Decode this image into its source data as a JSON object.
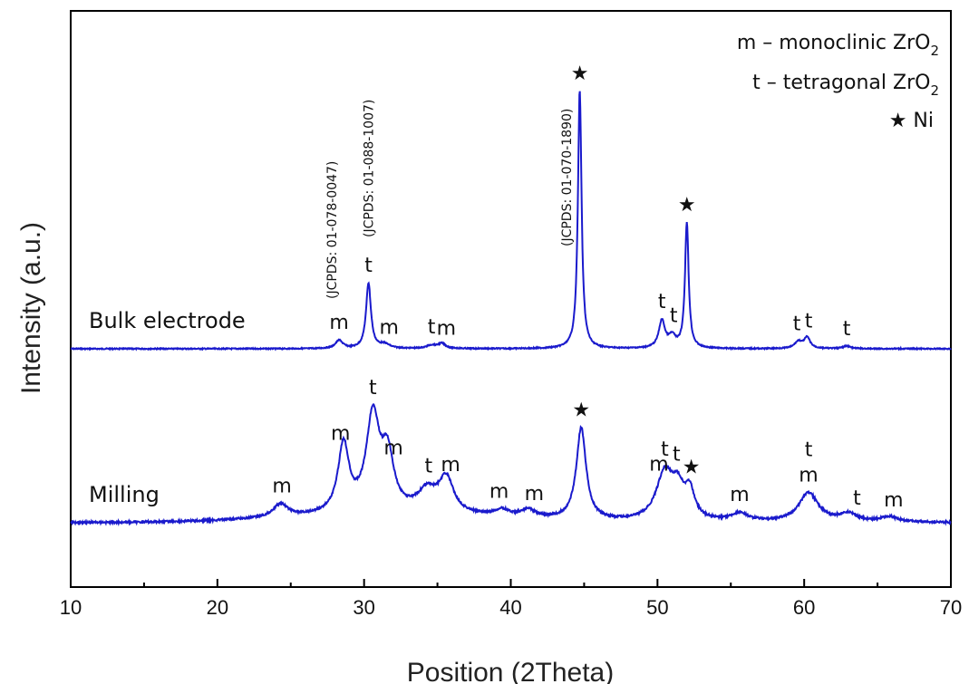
{
  "chart_data": {
    "type": "line",
    "xlabel": "Position (2Theta)",
    "ylabel": "Intensity (a.u.)",
    "xlim": [
      10,
      70
    ],
    "x_ticks": [
      "10",
      "20",
      "30",
      "40",
      "50",
      "60",
      "70"
    ],
    "line_color": "#1a1acc",
    "legend": [
      {
        "symbol": "m",
        "text": "– monoclinic ZrO",
        "sub": "2"
      },
      {
        "symbol": "t",
        "text": "– tetragonal ZrO",
        "sub": "2"
      },
      {
        "symbol": "★",
        "text": "Ni",
        "sub": ""
      }
    ],
    "series": [
      {
        "name": "Bulk electrode",
        "baseline": 0.0,
        "peaks": [
          {
            "x": 28.3,
            "h": 0.03,
            "w": 0.3
          },
          {
            "x": 30.3,
            "h": 0.24,
            "w": 0.2
          },
          {
            "x": 31.4,
            "h": 0.015,
            "w": 0.4
          },
          {
            "x": 34.6,
            "h": 0.012,
            "w": 0.4
          },
          {
            "x": 35.3,
            "h": 0.018,
            "w": 0.3
          },
          {
            "x": 44.7,
            "h": 0.95,
            "w": 0.15
          },
          {
            "x": 50.3,
            "h": 0.1,
            "w": 0.25
          },
          {
            "x": 51.0,
            "h": 0.04,
            "w": 0.3
          },
          {
            "x": 52.0,
            "h": 0.46,
            "w": 0.15
          },
          {
            "x": 59.6,
            "h": 0.025,
            "w": 0.3
          },
          {
            "x": 60.2,
            "h": 0.04,
            "w": 0.25
          },
          {
            "x": 62.9,
            "h": 0.01,
            "w": 0.3
          }
        ],
        "labels": [
          {
            "x": 28.3,
            "text": "m"
          },
          {
            "x": 30.3,
            "text": "t"
          },
          {
            "x": 31.7,
            "text": "m"
          },
          {
            "x": 34.6,
            "text": "t"
          },
          {
            "x": 35.6,
            "text": "m"
          },
          {
            "x": 44.7,
            "text": "★"
          },
          {
            "x": 50.3,
            "text": "t"
          },
          {
            "x": 51.1,
            "text": "t"
          },
          {
            "x": 52.0,
            "text": "★"
          },
          {
            "x": 59.5,
            "text": "t"
          },
          {
            "x": 60.3,
            "text": "t"
          },
          {
            "x": 62.9,
            "text": "t"
          }
        ]
      },
      {
        "name": "Milling",
        "baseline": 0.0,
        "peaks": [
          {
            "x": 24.3,
            "h": 0.05,
            "w": 0.6
          },
          {
            "x": 28.6,
            "h": 0.26,
            "w": 0.45
          },
          {
            "x": 30.6,
            "h": 0.36,
            "w": 0.55
          },
          {
            "x": 31.6,
            "h": 0.2,
            "w": 0.5
          },
          {
            "x": 34.3,
            "h": 0.08,
            "w": 0.8
          },
          {
            "x": 35.6,
            "h": 0.13,
            "w": 0.6
          },
          {
            "x": 39.4,
            "h": 0.025,
            "w": 0.6
          },
          {
            "x": 41.2,
            "h": 0.03,
            "w": 0.6
          },
          {
            "x": 44.8,
            "h": 0.35,
            "w": 0.4
          },
          {
            "x": 50.5,
            "h": 0.18,
            "w": 0.7
          },
          {
            "x": 51.4,
            "h": 0.1,
            "w": 0.5
          },
          {
            "x": 52.2,
            "h": 0.1,
            "w": 0.4
          },
          {
            "x": 55.6,
            "h": 0.03,
            "w": 0.7
          },
          {
            "x": 60.3,
            "h": 0.11,
            "w": 0.8
          },
          {
            "x": 63.0,
            "h": 0.03,
            "w": 0.7
          },
          {
            "x": 65.8,
            "h": 0.02,
            "w": 0.7
          }
        ],
        "labels": [
          {
            "x": 24.4,
            "text": "m"
          },
          {
            "x": 28.4,
            "text": "m"
          },
          {
            "x": 30.6,
            "text": "t"
          },
          {
            "x": 32.0,
            "text": "m"
          },
          {
            "x": 34.4,
            "text": "t"
          },
          {
            "x": 35.9,
            "text": "m"
          },
          {
            "x": 39.2,
            "text": "m"
          },
          {
            "x": 41.6,
            "text": "m"
          },
          {
            "x": 44.8,
            "text": "★"
          },
          {
            "x": 50.1,
            "text": "m"
          },
          {
            "x": 50.5,
            "text": "t"
          },
          {
            "x": 51.3,
            "text": "t"
          },
          {
            "x": 52.3,
            "text": "★"
          },
          {
            "x": 55.6,
            "text": "m"
          },
          {
            "x": 60.3,
            "text": "m"
          },
          {
            "x": 60.3,
            "text": "t"
          },
          {
            "x": 63.6,
            "text": "t"
          },
          {
            "x": 66.1,
            "text": "m"
          }
        ]
      }
    ],
    "annotations": [
      {
        "x": 27.8,
        "text": "(JCPDS: 01-078-0047)"
      },
      {
        "x": 30.3,
        "text": "(JCPDS: 01-088-1007)"
      },
      {
        "x": 43.8,
        "text": "(JCPDS: 01-070-1890)"
      }
    ]
  }
}
